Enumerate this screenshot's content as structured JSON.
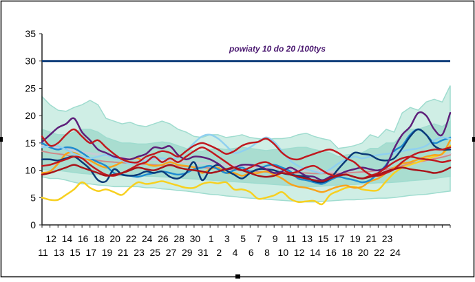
{
  "chart_data": {
    "type": "line",
    "annotation": "powiaty  10 do 20 /100tys",
    "ylim": [
      0,
      35
    ],
    "yticks": [
      0,
      5,
      10,
      15,
      20,
      25,
      30,
      35
    ],
    "x_ticks_top": [
      "12",
      "14",
      "16",
      "18",
      "20",
      "22",
      "24",
      "26",
      "28",
      "30",
      "1",
      "3",
      "5",
      "7",
      "9",
      "11",
      "13",
      "15",
      "17",
      "19",
      "21",
      "23"
    ],
    "x_ticks_bottom": [
      "11",
      "13",
      "15",
      "17",
      "19",
      "21",
      "23",
      "25",
      "27",
      "29",
      "31",
      "2",
      "4",
      "6",
      "8",
      "10",
      "12",
      "14",
      "16",
      "18",
      "20",
      "22",
      "24"
    ],
    "grid": false,
    "reference_line": {
      "value": 30,
      "color": "#0b3a78"
    },
    "bands": [
      {
        "color": "#cfeee5",
        "upper": [
          23.5,
          22,
          21,
          20.8,
          21.5,
          22,
          22.8,
          22,
          19.5,
          19,
          18.5,
          18.8,
          18.2,
          18,
          18.5,
          19,
          18.5,
          17.5,
          17,
          16.2,
          16,
          16.5,
          16.5,
          16,
          16.2,
          16.5,
          16,
          15.8,
          15.6,
          15.8,
          15.8,
          16,
          16.5,
          16.8,
          16.2,
          15.8,
          15.5,
          14,
          14.2,
          14.5,
          15,
          16.5,
          16,
          17.5,
          17,
          20.5,
          21.5,
          21,
          22.5,
          23,
          22.5,
          25.5
        ],
        "lower": [
          8.8,
          8.5,
          8.5,
          8.2,
          7.8,
          7.5,
          7.5,
          7.3,
          7.2,
          7,
          7,
          7,
          7,
          6.8,
          6.8,
          6.6,
          6.5,
          6.3,
          6.2,
          6,
          5.8,
          5.6,
          5.5,
          5.3,
          5.2,
          5,
          4.9,
          4.8,
          4.7,
          4.6,
          4.5,
          4.4,
          4.3,
          4.2,
          4.2,
          4.3,
          4.4,
          4.5,
          4.6,
          4.6,
          4.7,
          4.8,
          4.9,
          4.9,
          5,
          5.2,
          5.4,
          5.5,
          5.6,
          5.8,
          6,
          6.2
        ]
      },
      {
        "color": "#a9ddd0",
        "upper": [
          17.5,
          17,
          16.5,
          16.5,
          17,
          17.5,
          17.5,
          17,
          16,
          15.5,
          15,
          15,
          14.8,
          14.8,
          15,
          15.2,
          15,
          14.5,
          14,
          13.5,
          13.5,
          13.8,
          14,
          13.8,
          14,
          14.2,
          14,
          13.8,
          13.6,
          13.8,
          13.8,
          14,
          14.2,
          14.2,
          13.8,
          13.5,
          13.2,
          12.5,
          12.8,
          13,
          13.2,
          14,
          14,
          15,
          15,
          16.5,
          17.5,
          17.5,
          18,
          18.5,
          18,
          19
        ],
        "lower": [
          10.2,
          10,
          10,
          9.8,
          9.6,
          9.4,
          9.3,
          9.2,
          9.1,
          9,
          9,
          9,
          9,
          8.9,
          8.9,
          8.8,
          8.7,
          8.6,
          8.5,
          8.4,
          8.3,
          8.2,
          8.1,
          8,
          7.9,
          7.8,
          7.7,
          7.6,
          7.5,
          7.4,
          7.3,
          7.2,
          7.1,
          7,
          7,
          7.1,
          7.2,
          7.3,
          7.4,
          7.4,
          7.5,
          7.6,
          7.7,
          7.7,
          7.8,
          7.9,
          8.1,
          8.2,
          8.3,
          8.5,
          8.7,
          8.9
        ]
      }
    ],
    "series": [
      {
        "color": "#c8cbd6",
        "width": 3,
        "values": [
          14.5,
          14.3,
          14.1,
          13.9,
          13.6,
          13.3,
          13.1,
          12.9,
          12.7,
          12.5,
          12.3,
          12.2,
          12.1,
          12,
          11.9,
          11.8,
          11.7,
          11.6,
          11.5,
          11.4,
          11.3,
          11.2,
          11.1,
          11,
          10.9,
          10.8,
          10.7,
          10.6,
          10.5,
          10.4,
          10.3,
          10.2,
          10.1,
          10,
          9.9,
          9.8,
          9.7,
          9.6,
          9.6,
          9.6,
          9.6,
          9.7,
          9.8,
          9.9,
          10.1,
          10.5,
          11,
          11.4,
          11.8,
          12.2,
          12.6,
          13
        ]
      },
      {
        "color": "#cf8a8a",
        "width": 2,
        "values": [
          13.5,
          13.2,
          13,
          12.8,
          12.5,
          12.2,
          12,
          11.8,
          11.6,
          11.5,
          11.4,
          11.3,
          11.2,
          11.1,
          11,
          10.9,
          10.8,
          10.8,
          10.7,
          10.6,
          10.5,
          10.4,
          10.3,
          10.2,
          10.1,
          10,
          9.9,
          9.8,
          9.7,
          9.6,
          9.6,
          9.5,
          9.5,
          9.5,
          9.4,
          9.4,
          9.4,
          9.4,
          9.5,
          9.6,
          9.7,
          9.8,
          10,
          10.2,
          10.5,
          10.8,
          11.2,
          11.5,
          11.8,
          12.1,
          12.4,
          12.8
        ]
      },
      {
        "color": "#f7d020",
        "width": 2.5,
        "values": [
          5,
          4.6,
          4.6,
          5.5,
          6.5,
          7.8,
          6.8,
          6.2,
          6.5,
          6,
          5.5,
          6.8,
          7.8,
          7.5,
          7.7,
          8,
          7.6,
          7.2,
          6.8,
          6.8,
          7.5,
          7.8,
          7.6,
          7.8,
          6.5,
          6.5,
          6,
          4.8,
          5,
          5.4,
          6,
          4.8,
          4.2,
          4.3,
          4.4,
          3.8,
          5.5,
          6.2,
          6.8,
          7,
          6.5,
          6.3,
          6.4,
          8,
          9.5,
          10.5,
          11,
          11.5,
          12,
          12.5,
          13,
          14.5
        ]
      },
      {
        "color": "#f7a21c",
        "width": 2.5,
        "values": [
          9.5,
          9.8,
          11.2,
          13,
          13.2,
          12.5,
          11.8,
          11,
          10.5,
          10.8,
          11.5,
          12,
          12.2,
          11.2,
          10.8,
          11,
          11.5,
          11,
          10.8,
          10.5,
          9.5,
          10.2,
          10.5,
          9.5,
          9.5,
          9,
          9.5,
          9.5,
          9.8,
          9.2,
          8.5,
          7.5,
          7,
          6.8,
          6.4,
          6,
          6.5,
          7,
          7.2,
          6.8,
          7,
          8,
          8.5,
          9.5,
          10.5,
          11.2,
          11.5,
          12,
          12.5,
          12.8,
          13,
          15.5
        ]
      },
      {
        "color": "#1f8bd0",
        "width": 2.5,
        "values": [
          15,
          14.2,
          13.8,
          14.2,
          14,
          13.2,
          12.2,
          11.5,
          10.8,
          9.5,
          9.2,
          9,
          8.8,
          9.2,
          9.5,
          9.8,
          9.5,
          9.2,
          9.5,
          10.2,
          10.5,
          10.8,
          10.2,
          9.5,
          10,
          10.5,
          9.8,
          10.2,
          10.8,
          11,
          10.5,
          9.8,
          8.5,
          8.2,
          7.8,
          7.5,
          8.2,
          8.8,
          8.5,
          8.2,
          7.8,
          8.2,
          9.5,
          11,
          13.5,
          14.5,
          16.5,
          17.5,
          16.5,
          15,
          15.5,
          16
        ]
      },
      {
        "color": "#8fd0f0",
        "width": 2.5,
        "values": [
          14.2,
          14.4,
          14.4,
          13.8,
          13,
          12.5,
          12.2,
          12.5,
          12.8,
          12.2,
          11.8,
          11.2,
          11.5,
          11.8,
          12.2,
          12.2,
          12,
          12.4,
          13.5,
          15,
          16.2,
          16.5,
          15.8,
          14.5,
          13.2,
          13.5,
          14.2,
          15.2,
          16,
          15.2,
          13.5,
          11.8,
          10.8,
          10.2,
          9.8,
          9.5,
          10.2,
          11.2,
          12,
          12.5,
          12.2,
          12.5,
          12.8,
          13,
          13.2,
          13.5,
          13.8,
          14,
          14.5,
          15.5,
          16,
          15.8
        ]
      },
      {
        "color": "#0b3a78",
        "width": 2.5,
        "values": [
          12,
          12,
          11.8,
          12.2,
          12.5,
          11.5,
          10.2,
          8.2,
          8,
          10.2,
          9.2,
          9,
          9.2,
          9.8,
          9.5,
          9.8,
          8.8,
          8.5,
          9.5,
          11.5,
          8.2,
          10.2,
          11,
          10,
          9.2,
          8.5,
          9.5,
          10.2,
          10.2,
          10,
          9.5,
          9.2,
          9,
          8.8,
          8,
          7.8,
          8.5,
          10.2,
          11.8,
          13.2,
          13,
          12.8,
          12,
          11.8,
          12.2,
          14,
          16.2,
          17.5,
          16.5,
          14.5,
          13.8,
          13.8
        ]
      },
      {
        "color": "#5e1f7a",
        "width": 2.5,
        "values": [
          15.2,
          16.5,
          17.8,
          18.5,
          19.5,
          17,
          15.5,
          13.8,
          13.2,
          12.5,
          12.2,
          12,
          12.5,
          13,
          14.2,
          14,
          14.4,
          12.8,
          12,
          12.5,
          12.4,
          12,
          11.2,
          10.2,
          10.5,
          11,
          11,
          10.8,
          10.2,
          9.5,
          9.8,
          10.5,
          9.8,
          9,
          8.8,
          8.2,
          8.8,
          9.2,
          9.8,
          10.2,
          10.5,
          10.2,
          10,
          10.8,
          14,
          16.5,
          18,
          20.5,
          20,
          17.5,
          16.5,
          20.5
        ]
      },
      {
        "color": "#c0181e",
        "width": 2.5,
        "values": [
          16.2,
          14.5,
          15,
          16.5,
          17.5,
          16.2,
          15,
          15.5,
          14.2,
          13,
          12,
          11.5,
          11.5,
          12.5,
          13,
          13.5,
          13.2,
          12.5,
          13.5,
          14.5,
          15,
          14.5,
          13.8,
          13,
          13.5,
          14.5,
          15,
          15.2,
          15.8,
          14.8,
          13.2,
          12.2,
          12,
          12.5,
          13,
          13.5,
          13.8,
          13.2,
          12.2,
          11.5,
          10.2,
          9.2,
          9,
          9.5,
          10.2,
          11.5,
          12.5,
          13.2,
          13.5,
          13.8,
          13.8,
          14.2
        ]
      },
      {
        "color": "#c0181e",
        "width": 2.5,
        "values": [
          10.8,
          11,
          11.5,
          12,
          12.5,
          12.2,
          11,
          10,
          9.2,
          9,
          9.5,
          10.2,
          11,
          11.5,
          12.5,
          11.5,
          12.2,
          11.5,
          12.5,
          13.5,
          14.2,
          13.5,
          12.5,
          11.5,
          10.5,
          10,
          10.5,
          11.2,
          11.5,
          10.8,
          10.2,
          9.5,
          9.8,
          10.5,
          10.8,
          10,
          9.2,
          9,
          9.2,
          8.8,
          8.5,
          9,
          9.5,
          10.5,
          11.5,
          12.2,
          12.5,
          12.2,
          12,
          11.8,
          11.5,
          11.8
        ]
      },
      {
        "color": "#a8141a",
        "width": 2.5,
        "values": [
          9.2,
          9.5,
          10,
          10.5,
          11,
          10.5,
          10,
          9.5,
          9,
          9.2,
          9.5,
          10,
          10.5,
          10.2,
          10,
          10.5,
          11,
          10.5,
          10.2,
          10,
          9.8,
          9.5,
          9.8,
          10.2,
          10.5,
          10,
          9.5,
          9,
          8.8,
          9,
          9.5,
          9.2,
          8.8,
          8.5,
          8.2,
          8,
          8.5,
          9,
          9.2,
          8.8,
          8.5,
          8.8,
          9.2,
          9.8,
          10.2,
          10.5,
          10.2,
          10,
          9.8,
          9.5,
          9.8,
          10.5
        ]
      }
    ]
  }
}
